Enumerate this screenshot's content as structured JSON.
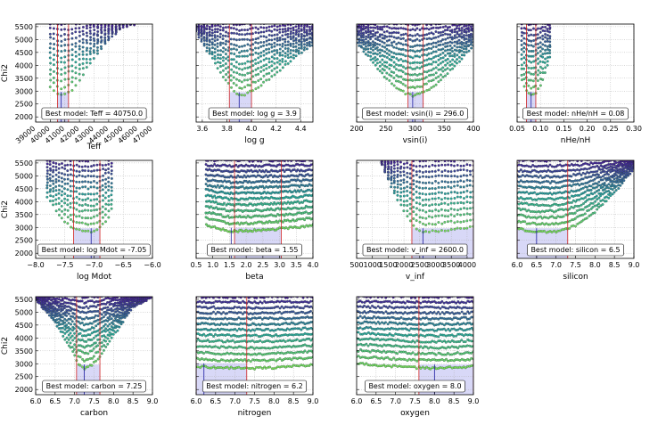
{
  "figure_caption": "",
  "colors": {
    "fit_range_fill": "#b8b8f0",
    "best_line": "#1a1aa0",
    "range_line": "#d02020",
    "grid": "#b0b0b0",
    "point_low_chi2": "#7ee05a",
    "point_mid_chi2": "#2aa8a0",
    "point_high_chi2": "#4a1a9a"
  },
  "chart_data": [
    {
      "type": "scatter",
      "id": "teff",
      "xlabel": "Teff",
      "ylabel": "Chi2",
      "xlim": [
        39000,
        47000
      ],
      "ylim": [
        1800,
        5600
      ],
      "xticks": [
        39000,
        40000,
        41000,
        42000,
        43000,
        44000,
        45000,
        46000,
        47000
      ],
      "xticklabels": [
        "39000",
        "40000",
        "41000",
        "42000",
        "43000",
        "44000",
        "45000",
        "46000",
        "47000"
      ],
      "yticks": [
        2000,
        2500,
        3000,
        3500,
        4000,
        4500,
        5000,
        5500
      ],
      "yticklabels": [
        "2000",
        "2500",
        "3000",
        "3500",
        "4000",
        "4500",
        "5000",
        "5500"
      ],
      "tick_rotation": 40,
      "grid_columns": [
        40000,
        40250,
        40500,
        40750,
        41000,
        41250,
        41500,
        41750,
        42000,
        42250,
        42500,
        42750,
        43000,
        43250,
        43500,
        43750,
        44000,
        44250,
        44500,
        44750,
        45000,
        45250,
        45500,
        45750,
        46000,
        46250,
        46500,
        46750
      ],
      "envelope_x": [
        40000,
        40500,
        40750,
        41000,
        41500,
        42000,
        42500,
        43000,
        44000,
        45000,
        46000,
        46750
      ],
      "envelope_y": [
        3150,
        2900,
        2830,
        2900,
        3050,
        3400,
        3900,
        4300,
        5000,
        5500,
        5600,
        5600
      ],
      "best_value": 40750,
      "range_lo": 40500,
      "range_hi": 41250,
      "legend": "Best model: Teff = 40750.0"
    },
    {
      "type": "scatter",
      "id": "logg",
      "xlabel": "log g",
      "ylabel": "",
      "xlim": [
        3.55,
        4.5
      ],
      "ylim": [
        1800,
        5600
      ],
      "xticks": [
        3.6,
        3.8,
        4.0,
        4.2,
        4.4
      ],
      "xticklabels": [
        "3.6",
        "3.8",
        "4.0",
        "4.2",
        "4.4"
      ],
      "yticks": [
        2000,
        2500,
        3000,
        3500,
        4000,
        4500,
        5000,
        5500
      ],
      "yticklabels": [],
      "tick_rotation": 0,
      "grid_columns_step": 0.022,
      "envelope_x": [
        3.55,
        3.65,
        3.75,
        3.85,
        3.9,
        3.95,
        4.05,
        4.15,
        4.25,
        4.35,
        4.45,
        4.5
      ],
      "envelope_y": [
        5300,
        4500,
        3700,
        3050,
        2820,
        2870,
        3150,
        3500,
        3900,
        4300,
        4650,
        4800
      ],
      "best_value": 3.9,
      "range_lo": 3.82,
      "range_hi": 4.0,
      "legend": "Best model: log g = 3.9"
    },
    {
      "type": "scatter",
      "id": "vsini",
      "xlabel": "vsin(i)",
      "ylabel": "",
      "xlim": [
        200,
        400
      ],
      "ylim": [
        1800,
        5600
      ],
      "xticks": [
        200,
        250,
        300,
        350,
        400
      ],
      "xticklabels": [
        "200",
        "250",
        "300",
        "350",
        "400"
      ],
      "yticks": [
        2000,
        2500,
        3000,
        3500,
        4000,
        4500,
        5000,
        5500
      ],
      "yticklabels": [],
      "tick_rotation": 0,
      "grid_columns_step": 4,
      "envelope_x": [
        200,
        225,
        250,
        270,
        285,
        296,
        310,
        330,
        350,
        375,
        400
      ],
      "envelope_y": [
        4900,
        4200,
        3500,
        3100,
        2900,
        2830,
        2900,
        3150,
        3550,
        4150,
        4800
      ],
      "best_value": 296.0,
      "range_lo": 288,
      "range_hi": 314,
      "legend": "Best model: vsin(i) = 296.0"
    },
    {
      "type": "scatter",
      "id": "nhe",
      "xlabel": "nHe/nH",
      "ylabel": "",
      "xlim": [
        0.05,
        0.3
      ],
      "ylim": [
        1800,
        5600
      ],
      "xticks": [
        0.05,
        0.1,
        0.15,
        0.2,
        0.25,
        0.3
      ],
      "xticklabels": [
        "0.05",
        "0.10",
        "0.15",
        "0.20",
        "0.25",
        "0.30"
      ],
      "yticks": [
        2000,
        2500,
        3000,
        3500,
        4000,
        4500,
        5000,
        5500
      ],
      "yticklabels": [],
      "tick_rotation": 0,
      "grid_columns": [
        0.06,
        0.065,
        0.07,
        0.075,
        0.08,
        0.085,
        0.09,
        0.095,
        0.1,
        0.105,
        0.11,
        0.115,
        0.12
      ],
      "envelope_x": [
        0.06,
        0.07,
        0.08,
        0.09,
        0.1,
        0.11,
        0.12
      ],
      "envelope_y": [
        3400,
        3000,
        2830,
        2950,
        3250,
        3700,
        4300
      ],
      "best_value": 0.08,
      "range_lo": 0.07,
      "range_hi": 0.09,
      "legend": "Best model: nHe/nH = 0.08"
    },
    {
      "type": "scatter",
      "id": "mdot",
      "xlabel": "log Mdot",
      "ylabel": "Chi2",
      "xlim": [
        -8.0,
        -6.0
      ],
      "ylim": [
        1800,
        5600
      ],
      "xticks": [
        -8.0,
        -7.5,
        -7.0,
        -6.5,
        -6.0
      ],
      "xticklabels": [
        "−8.0",
        "−7.5",
        "−7.0",
        "−6.5",
        "−6.0"
      ],
      "yticks": [
        2000,
        2500,
        3000,
        3500,
        4000,
        4500,
        5000,
        5500
      ],
      "yticklabels": [
        "2000",
        "2500",
        "3000",
        "3500",
        "4000",
        "4500",
        "5000",
        "5500"
      ],
      "tick_rotation": 0,
      "grid_columns_step": 0.05,
      "grid_columns_range": [
        -7.8,
        -6.7
      ],
      "envelope_x": [
        -7.8,
        -7.6,
        -7.4,
        -7.2,
        -7.05,
        -6.95,
        -6.85,
        -6.75,
        -6.7
      ],
      "envelope_y": [
        4200,
        3500,
        3000,
        2850,
        2830,
        2880,
        3100,
        3400,
        3700
      ],
      "best_value": -7.05,
      "range_lo": -7.35,
      "range_hi": -6.9,
      "legend": "Best model: log Mdot = -7.05"
    },
    {
      "type": "scatter",
      "id": "beta",
      "xlabel": "beta",
      "ylabel": "",
      "xlim": [
        0.5,
        4.0
      ],
      "ylim": [
        1800,
        5600
      ],
      "xticks": [
        0.5,
        1.0,
        1.5,
        2.0,
        2.5,
        3.0,
        3.5,
        4.0
      ],
      "xticklabels": [
        "0.5",
        "1.0",
        "1.5",
        "2.0",
        "2.5",
        "3.0",
        "3.5",
        "4.0"
      ],
      "yticks": [
        2000,
        2500,
        3000,
        3500,
        4000,
        4500,
        5000,
        5500
      ],
      "yticklabels": [],
      "tick_rotation": 0,
      "grid_columns_step": 0.05,
      "grid_columns_range": [
        0.8,
        4.0
      ],
      "envelope_x": [
        0.8,
        1.2,
        1.55,
        2.0,
        2.5,
        3.0,
        3.5,
        4.0
      ],
      "envelope_y": [
        3100,
        2950,
        2850,
        2870,
        2900,
        2950,
        3000,
        3100
      ],
      "best_value": 1.55,
      "range_lo": 1.65,
      "range_hi": 3.05,
      "legend": "Best model: beta = 1.55"
    },
    {
      "type": "scatter",
      "id": "vinf",
      "xlabel": "v_inf",
      "ylabel": "",
      "xlim": [
        500,
        4200
      ],
      "ylim": [
        1800,
        5600
      ],
      "xticks": [
        500,
        1000,
        1500,
        2000,
        2500,
        3000,
        3500,
        4000
      ],
      "xticklabels": [
        "500",
        "1000",
        "1500",
        "2000",
        "2500",
        "3000",
        "3500",
        "4000"
      ],
      "yticks": [
        2000,
        2500,
        3000,
        3500,
        4000,
        4500,
        5000,
        5500
      ],
      "yticklabels": [],
      "tick_rotation": 0,
      "grid_columns_step": 100,
      "grid_columns_range": [
        1300,
        4200
      ],
      "envelope_x": [
        1300,
        1700,
        2100,
        2400,
        2600,
        2900,
        3300,
        3700,
        4200
      ],
      "envelope_y": [
        5400,
        4300,
        3400,
        2950,
        2830,
        2850,
        2900,
        2950,
        3000
      ],
      "best_value": 2600.0,
      "range_lo": 2250,
      "range_hi": 4200,
      "legend": "Best model: v_inf = 2600.0"
    },
    {
      "type": "scatter",
      "id": "silicon",
      "xlabel": "silicon",
      "ylabel": "",
      "xlim": [
        6.0,
        9.0
      ],
      "ylim": [
        1800,
        5600
      ],
      "xticks": [
        6.0,
        6.5,
        7.0,
        7.5,
        8.0,
        8.5,
        9.0
      ],
      "xticklabels": [
        "6.0",
        "6.5",
        "7.0",
        "7.5",
        "8.0",
        "8.5",
        "9.0"
      ],
      "yticks": [
        2000,
        2500,
        3000,
        3500,
        4000,
        4500,
        5000,
        5500
      ],
      "yticklabels": [],
      "tick_rotation": 0,
      "grid_columns_step": 0.05,
      "grid_columns_range": [
        6.0,
        9.0
      ],
      "envelope_x": [
        6.0,
        6.5,
        7.0,
        7.3,
        7.6,
        8.0,
        8.4,
        8.8,
        9.0
      ],
      "envelope_y": [
        2950,
        2830,
        2850,
        2950,
        3150,
        3600,
        4200,
        4900,
        5300
      ],
      "best_value": 6.5,
      "range_lo": 6.0,
      "range_hi": 7.3,
      "legend": "Best model: silicon = 6.5"
    },
    {
      "type": "scatter",
      "id": "carbon",
      "xlabel": "carbon",
      "ylabel": "Chi2",
      "xlim": [
        6.0,
        9.0
      ],
      "ylim": [
        1800,
        5600
      ],
      "xticks": [
        6.0,
        6.5,
        7.0,
        7.5,
        8.0,
        8.5,
        9.0
      ],
      "xticklabels": [
        "6.0",
        "6.5",
        "7.0",
        "7.5",
        "8.0",
        "8.5",
        "9.0"
      ],
      "yticks": [
        2000,
        2500,
        3000,
        3500,
        4000,
        4500,
        5000,
        5500
      ],
      "yticklabels": [
        "2000",
        "2500",
        "3000",
        "3500",
        "4000",
        "4500",
        "5000",
        "5500"
      ],
      "tick_rotation": 0,
      "grid_columns_step": 0.05,
      "grid_columns_range": [
        6.0,
        9.0
      ],
      "envelope_x": [
        6.0,
        6.5,
        6.9,
        7.1,
        7.25,
        7.45,
        7.7,
        8.0,
        8.5,
        9.0
      ],
      "envelope_y": [
        5500,
        4600,
        3600,
        3000,
        2830,
        2950,
        3400,
        4100,
        5200,
        5600
      ],
      "best_value": 7.25,
      "range_lo": 7.05,
      "range_hi": 7.65,
      "legend": "Best model: carbon = 7.25"
    },
    {
      "type": "scatter",
      "id": "nitrogen",
      "xlabel": "nitrogen",
      "ylabel": "",
      "xlim": [
        6.0,
        9.0
      ],
      "ylim": [
        1800,
        5600
      ],
      "xticks": [
        6.0,
        6.5,
        7.0,
        7.5,
        8.0,
        8.5,
        9.0
      ],
      "xticklabels": [
        "6.0",
        "6.5",
        "7.0",
        "7.5",
        "8.0",
        "8.5",
        "9.0"
      ],
      "yticks": [
        2000,
        2500,
        3000,
        3500,
        4000,
        4500,
        5000,
        5500
      ],
      "yticklabels": [],
      "tick_rotation": 0,
      "grid_columns_step": 0.05,
      "grid_columns_range": [
        6.0,
        9.0
      ],
      "envelope_x": [
        6.0,
        6.5,
        7.0,
        7.5,
        8.0,
        8.5,
        9.0
      ],
      "envelope_y": [
        2900,
        2850,
        2840,
        2830,
        2850,
        2900,
        2950
      ],
      "best_value": 6.2,
      "range_lo": 6.0,
      "range_hi": 7.3,
      "legend": "Best model: nitrogen = 6.2"
    },
    {
      "type": "scatter",
      "id": "oxygen",
      "xlabel": "oxygen",
      "ylabel": "",
      "xlim": [
        6.0,
        9.0
      ],
      "ylim": [
        1800,
        5600
      ],
      "xticks": [
        6.0,
        6.5,
        7.0,
        7.5,
        8.0,
        8.5,
        9.0
      ],
      "xticklabels": [
        "6.0",
        "6.5",
        "7.0",
        "7.5",
        "8.0",
        "8.5",
        "9.0"
      ],
      "yticks": [
        2000,
        2500,
        3000,
        3500,
        4000,
        4500,
        5000,
        5500
      ],
      "yticklabels": [],
      "tick_rotation": 0,
      "grid_columns_step": 0.05,
      "grid_columns_range": [
        6.0,
        9.0
      ],
      "envelope_x": [
        6.0,
        6.5,
        7.0,
        7.5,
        8.0,
        8.5,
        9.0
      ],
      "envelope_y": [
        3000,
        2950,
        2900,
        2850,
        2830,
        2850,
        2900
      ],
      "best_value": 8.0,
      "range_lo": 7.6,
      "range_hi": 9.0,
      "legend": "Best model: oxygen = 8.0"
    }
  ]
}
